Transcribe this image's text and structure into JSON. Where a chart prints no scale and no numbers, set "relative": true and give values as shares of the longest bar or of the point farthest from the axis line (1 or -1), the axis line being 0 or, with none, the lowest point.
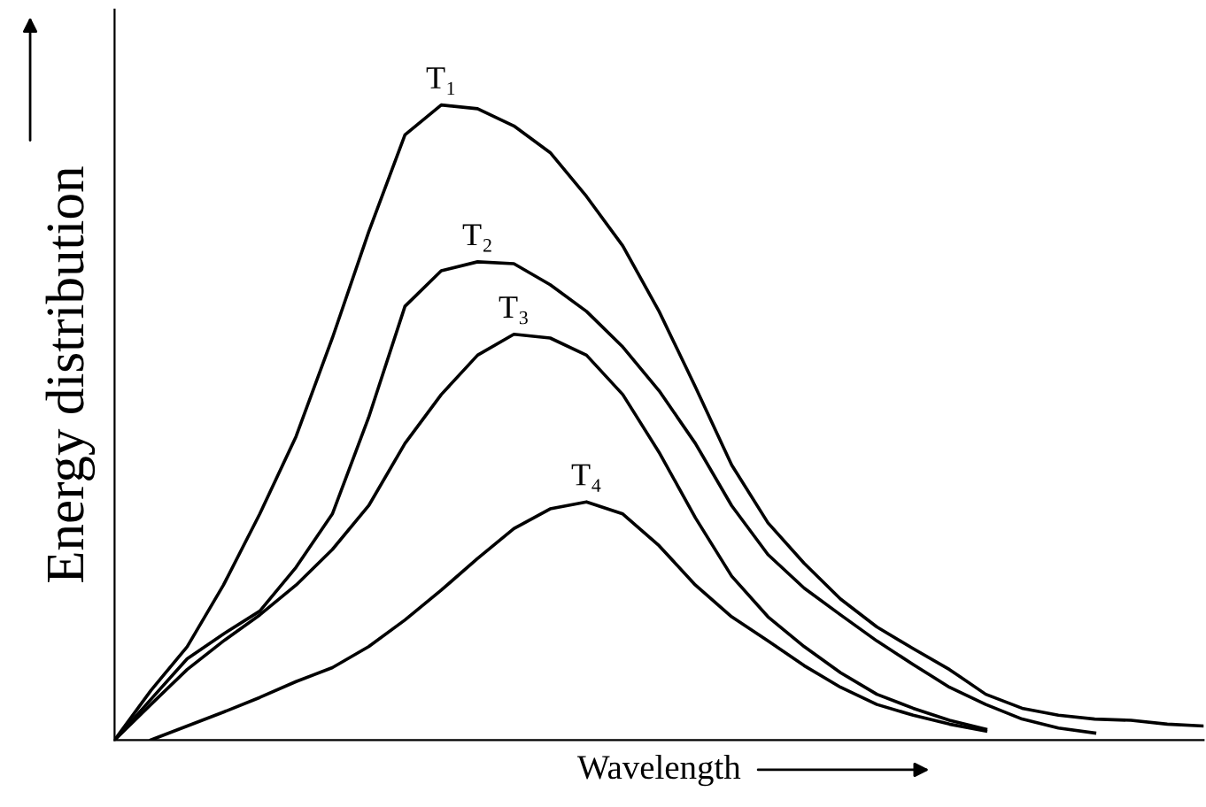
{
  "chart_data": {
    "type": "line",
    "relative": true,
    "xlabel": "Wavelength",
    "ylabel": "Energy distribution",
    "categories": [
      null,
      null,
      null,
      null,
      null,
      null,
      null,
      null,
      null,
      null,
      null,
      null,
      null,
      null,
      null,
      null,
      null,
      null,
      null,
      null,
      null,
      null,
      null,
      null,
      null,
      null,
      null,
      null,
      null,
      null,
      null
    ],
    "marker": "none",
    "line_style": "solid",
    "legend": false,
    "series": [
      {
        "name": "T₁",
        "color": "#000000",
        "values": [
          0,
          0.078,
          0.147,
          0.244,
          0.356,
          0.478,
          0.633,
          0.8,
          0.953,
          1.0,
          0.994,
          0.967,
          0.925,
          0.856,
          0.778,
          0.675,
          0.556,
          0.433,
          0.342,
          0.278,
          0.222,
          0.178,
          0.144,
          0.111,
          0.072,
          0.05,
          0.039,
          0.033,
          0.031,
          0.025,
          0.022
        ]
      },
      {
        "name": "T₂",
        "color": "#000000",
        "values": [
          0,
          0.064,
          0.128,
          0.167,
          0.203,
          0.272,
          0.356,
          0.508,
          0.683,
          0.739,
          0.753,
          0.75,
          0.717,
          0.675,
          0.619,
          0.55,
          0.467,
          0.369,
          0.292,
          0.239,
          0.197,
          0.156,
          0.119,
          0.083,
          0.056,
          0.033,
          0.019,
          0.011,
          null,
          null,
          null
        ]
      },
      {
        "name": "T₃",
        "color": "#000000",
        "values": [
          0,
          0.056,
          0.111,
          0.156,
          0.197,
          0.244,
          0.3,
          0.369,
          0.467,
          0.544,
          0.606,
          0.639,
          0.633,
          0.606,
          0.544,
          0.453,
          0.35,
          0.258,
          0.194,
          0.147,
          0.106,
          0.072,
          0.05,
          0.031,
          0.017,
          null,
          null,
          null,
          null,
          null,
          null
        ]
      },
      {
        "name": "T₄",
        "color": "#000000",
        "values": [
          null,
          0,
          0.022,
          0.044,
          0.067,
          0.092,
          0.114,
          0.147,
          0.189,
          0.236,
          0.286,
          0.333,
          0.364,
          0.375,
          0.356,
          0.306,
          0.244,
          0.194,
          0.156,
          0.117,
          0.083,
          0.056,
          0.039,
          0.025,
          0.014,
          null,
          null,
          null,
          null,
          null,
          null
        ]
      }
    ]
  }
}
